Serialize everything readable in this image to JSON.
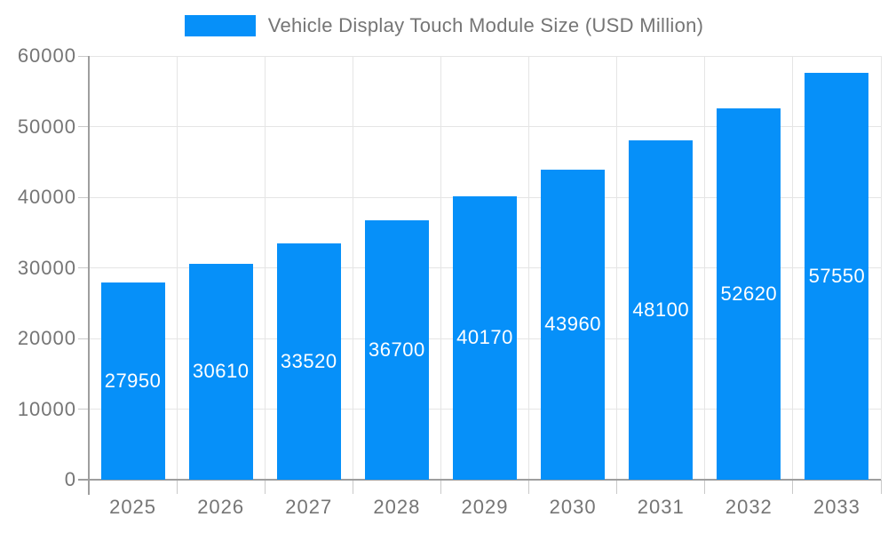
{
  "chart_data": {
    "type": "bar",
    "title": "Vehicle Display Touch Module Size (USD Million)",
    "legend_position": "top",
    "categories": [
      "2025",
      "2026",
      "2027",
      "2028",
      "2029",
      "2030",
      "2031",
      "2032",
      "2033"
    ],
    "values": [
      27950,
      30610,
      33520,
      36700,
      40170,
      43960,
      48100,
      52620,
      57550
    ],
    "xlabel": "",
    "ylabel": "",
    "ylim": [
      0,
      60000
    ],
    "ytick_step": 10000,
    "yticks": [
      0,
      10000,
      20000,
      30000,
      40000,
      50000,
      60000
    ],
    "grid": true,
    "value_labels": "inside-center",
    "colors": {
      "bar": "#0690F9",
      "grid": "#e5e5e5",
      "axis": "#9e9e9e",
      "tick": "#c9c9c9",
      "text": "#757575",
      "value_label": "#ffffff",
      "background": "#ffffff"
    }
  }
}
